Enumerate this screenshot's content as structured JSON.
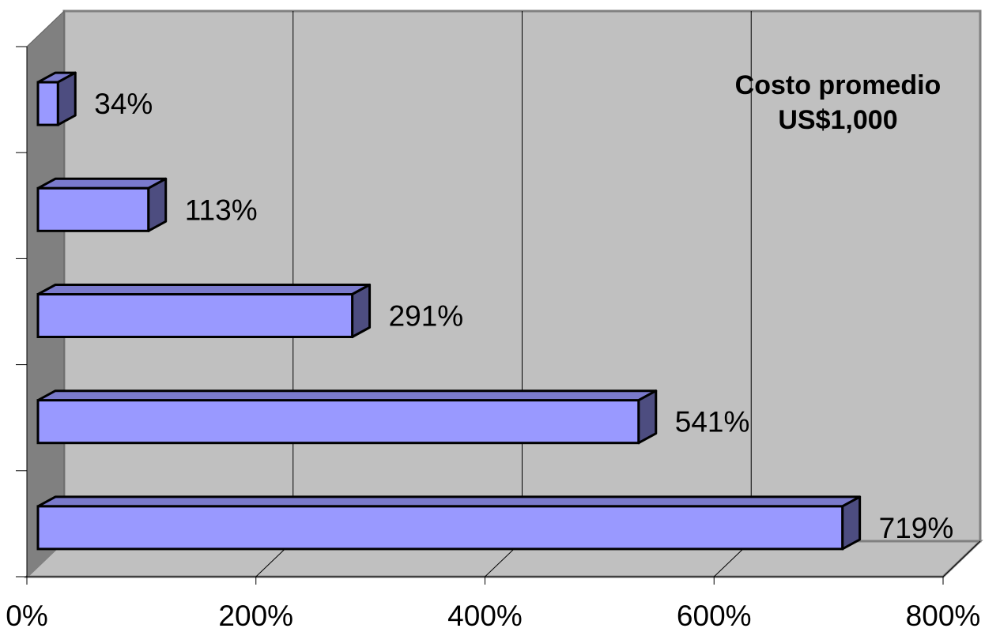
{
  "chart_data": {
    "type": "bar",
    "orientation": "horizontal",
    "categories": [
      "",
      "",
      "",
      "",
      ""
    ],
    "values": [
      34,
      113,
      291,
      541,
      719
    ],
    "data_labels": [
      "34%",
      "113%",
      "291%",
      "541%",
      "719%"
    ],
    "xlim": [
      0,
      800
    ],
    "x_ticks": [
      0,
      200,
      400,
      600,
      800
    ],
    "x_tick_labels": [
      "0%",
      "200%",
      "400%",
      "600%",
      "800%"
    ],
    "grid": true,
    "style": "3d",
    "annotation": [
      "Costo promedio",
      "US$1,000"
    ],
    "colors": {
      "bar_face": "#9999ff",
      "bar_side": "#4d4d80",
      "bar_top": "#7a7acc",
      "plot_back_wall": "#c0c0c0",
      "side_wall": "#808080",
      "floor": "#c0c0c0"
    }
  }
}
